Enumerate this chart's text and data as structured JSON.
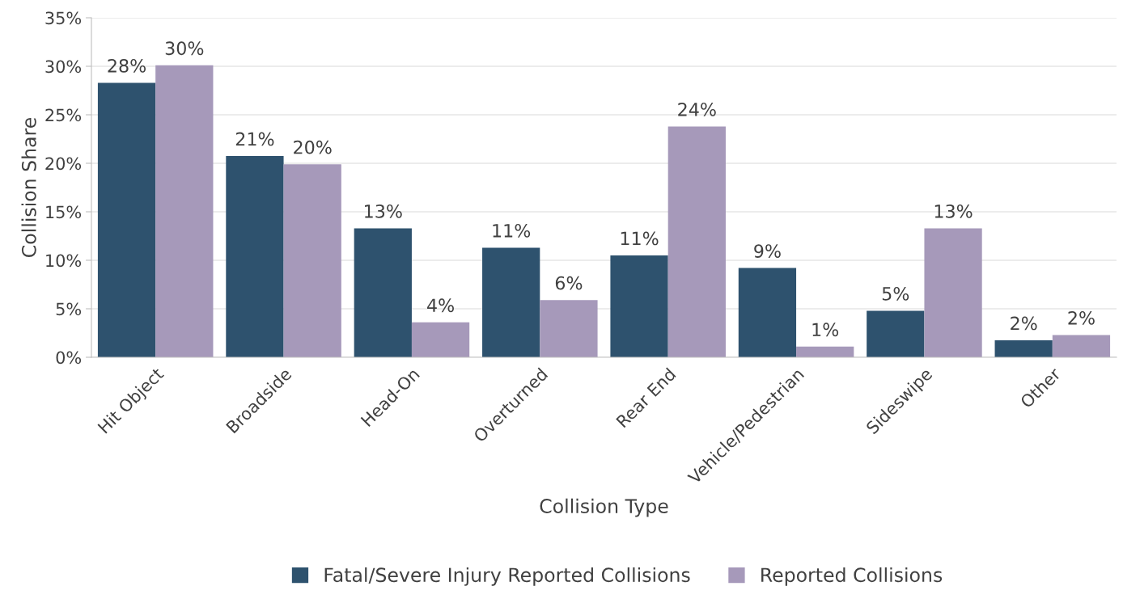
{
  "chart_data": {
    "type": "bar",
    "xlabel": "Collision Type",
    "ylabel": "Collision Share",
    "categories": [
      "Hit Object",
      "Broadside",
      "Head-On",
      "Overturned",
      "Rear End",
      "Vehicle/Pedestrian",
      "Sideswipe",
      "Other"
    ],
    "series": [
      {
        "name": "Fatal/Severe Injury Reported Collisions",
        "color": "#2e526e",
        "values": [
          28.3,
          20.75,
          13.3,
          11.3,
          10.5,
          9.2,
          4.8,
          1.75
        ],
        "value_labels": [
          "28%",
          "21%",
          "13%",
          "11%",
          "11%",
          "9%",
          "5%",
          "2%"
        ]
      },
      {
        "name": "Reported Collisions",
        "color": "#a699ba",
        "values": [
          30.1,
          19.9,
          3.6,
          5.9,
          23.8,
          1.1,
          13.3,
          2.3
        ],
        "value_labels": [
          "30%",
          "20%",
          "4%",
          "6%",
          "24%",
          "1%",
          "13%",
          "2%"
        ]
      }
    ],
    "ylim": [
      0,
      35
    ],
    "yticks": [
      {
        "value": 0,
        "label": "0%"
      },
      {
        "value": 5,
        "label": "5%"
      },
      {
        "value": 10,
        "label": "10%"
      },
      {
        "value": 15,
        "label": "15%"
      },
      {
        "value": 20,
        "label": "20%"
      },
      {
        "value": 25,
        "label": "25%"
      },
      {
        "value": 30,
        "label": "30%"
      },
      {
        "value": 35,
        "label": "35%"
      }
    ],
    "grid": "y",
    "legend": "bottom"
  }
}
